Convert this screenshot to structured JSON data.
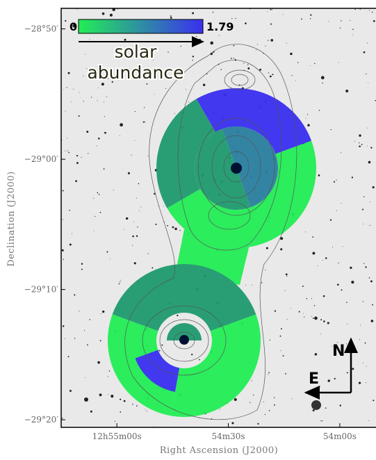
{
  "chart_data": {
    "type": "map",
    "x_label": "Right Ascension (J2000)",
    "y_label": "Declination (J2000)",
    "xlim": [
      3315,
      3230.25
    ],
    "ylim": [
      -28.807,
      -29.343
    ],
    "xticks": [
      {
        "value": 3300,
        "label": "12h55m00s"
      },
      {
        "value": 3270,
        "label": "54m30s"
      },
      {
        "value": 3240,
        "label": "54m00s"
      }
    ],
    "yticks": [
      {
        "value": -28.8333,
        "label": "−28°50′"
      },
      {
        "value": -29.0,
        "label": "−29°00′"
      },
      {
        "value": -29.1667,
        "label": "−29°10′"
      },
      {
        "value": -29.3333,
        "label": "−29°20′"
      }
    ],
    "colorbar": {
      "min": 0,
      "max": 1.79,
      "label_line1": "solar",
      "label_line2": "abundance",
      "colors": [
        "#22ee55",
        "#3a2ff0"
      ]
    },
    "compass": {
      "north": "N",
      "east": "E"
    }
  }
}
